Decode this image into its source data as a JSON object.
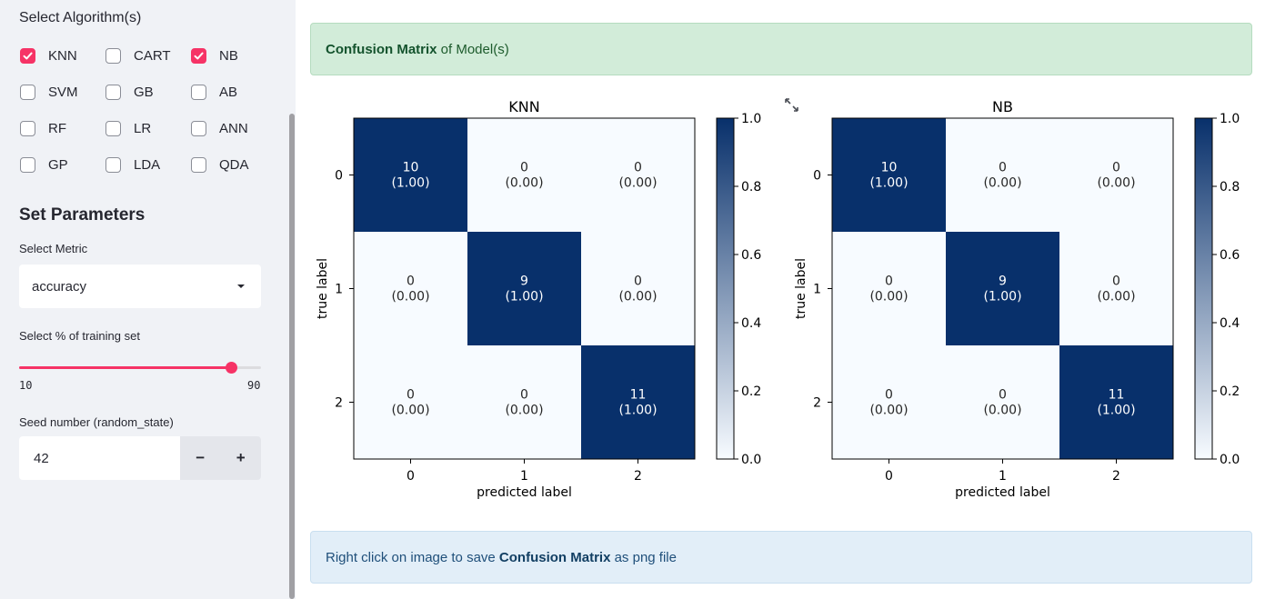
{
  "sidebar": {
    "algorithms_title": "Select Algorithm(s)",
    "algorithms": [
      {
        "label": "KNN",
        "checked": true
      },
      {
        "label": "CART",
        "checked": false
      },
      {
        "label": "NB",
        "checked": true
      },
      {
        "label": "SVM",
        "checked": false
      },
      {
        "label": "GB",
        "checked": false
      },
      {
        "label": "AB",
        "checked": false
      },
      {
        "label": "RF",
        "checked": false
      },
      {
        "label": "LR",
        "checked": false
      },
      {
        "label": "ANN",
        "checked": false
      },
      {
        "label": "GP",
        "checked": false
      },
      {
        "label": "LDA",
        "checked": false
      },
      {
        "label": "QDA",
        "checked": false
      }
    ],
    "params_title": "Set Parameters",
    "metric_label": "Select Metric",
    "metric_value": "accuracy",
    "training_label": "Select % of training set",
    "training_min": "10",
    "training_max": "90",
    "training_value": 90,
    "seed_label": "Seed number (random_state)",
    "seed_value": "42",
    "minus_label": "−",
    "plus_label": "+"
  },
  "main": {
    "success_strong": "Confusion Matrix",
    "success_rest": " of Model(s)",
    "info_prefix": "Right click on image to save ",
    "info_strong": "Confusion Matrix",
    "info_suffix": " as png file"
  },
  "colors": {
    "accent": "#f63366",
    "cmap_low": "#f7fbff",
    "cmap_high": "#08306b"
  },
  "icons": {
    "expand": "expand-icon",
    "checkbox_check": "check-icon",
    "dropdown": "chevron-down-icon"
  },
  "chart_data": [
    {
      "type": "heatmap",
      "title": "KNN",
      "xlabel": "predicted label",
      "ylabel": "true label",
      "x_ticks": [
        "0",
        "1",
        "2"
      ],
      "y_ticks": [
        "0",
        "1",
        "2"
      ],
      "counts": [
        [
          10,
          0,
          0
        ],
        [
          0,
          9,
          0
        ],
        [
          0,
          0,
          11
        ]
      ],
      "normalized": [
        [
          "1.00",
          "0.00",
          "0.00"
        ],
        [
          "0.00",
          "1.00",
          "0.00"
        ],
        [
          "0.00",
          "0.00",
          "1.00"
        ]
      ],
      "colorbar_ticks": [
        "0.0",
        "0.2",
        "0.4",
        "0.6",
        "0.8",
        "1.0"
      ],
      "colorbar_range": [
        0,
        1
      ]
    },
    {
      "type": "heatmap",
      "title": "NB",
      "xlabel": "predicted label",
      "ylabel": "true label",
      "x_ticks": [
        "0",
        "1",
        "2"
      ],
      "y_ticks": [
        "0",
        "1",
        "2"
      ],
      "counts": [
        [
          10,
          0,
          0
        ],
        [
          0,
          9,
          0
        ],
        [
          0,
          0,
          11
        ]
      ],
      "normalized": [
        [
          "1.00",
          "0.00",
          "0.00"
        ],
        [
          "0.00",
          "1.00",
          "0.00"
        ],
        [
          "0.00",
          "0.00",
          "1.00"
        ]
      ],
      "colorbar_ticks": [
        "0.0",
        "0.2",
        "0.4",
        "0.6",
        "0.8",
        "1.0"
      ],
      "colorbar_range": [
        0,
        1
      ]
    }
  ]
}
